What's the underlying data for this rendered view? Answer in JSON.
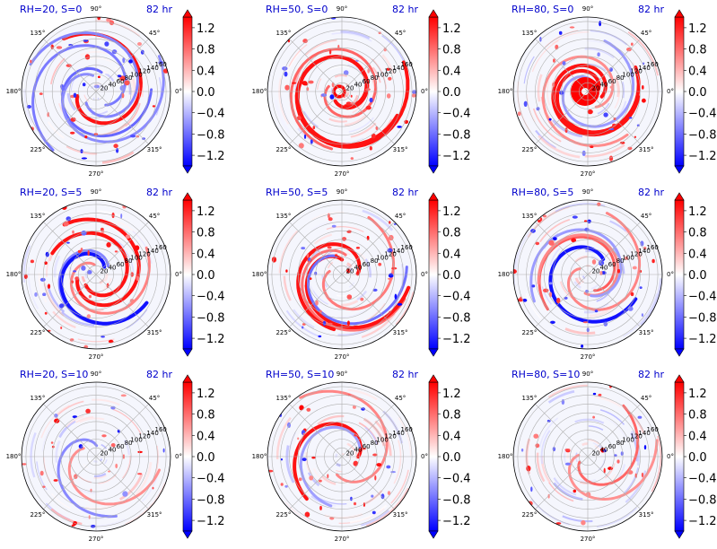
{
  "figure": {
    "time_label": "82 hr",
    "angle_ticks": [
      "0°",
      "45°",
      "90°",
      "135°",
      "180°",
      "225°",
      "270°",
      "315°"
    ],
    "radial_ticks": [
      "20",
      "40",
      "60",
      "80",
      "100",
      "120",
      "140",
      "160"
    ],
    "colorbar_ticks": [
      "1.2",
      "0.8",
      "0.4",
      "0.0",
      "−0.4",
      "−0.8",
      "−1.2"
    ],
    "colorbar_range": [
      -1.4,
      1.4
    ],
    "colormap": "bwr",
    "title_color": "#0000cc"
  },
  "chart_data": [
    {
      "type": "heatmap",
      "projection": "polar",
      "title": "RH=20, S=0",
      "time": "82 hr",
      "rh": 20,
      "s": 0,
      "radial_range": [
        0,
        170
      ],
      "pattern": "spiral bands with strong positive outer band on eastern side"
    },
    {
      "type": "heatmap",
      "projection": "polar",
      "title": "RH=50, S=0",
      "time": "82 hr",
      "rh": 50,
      "s": 0,
      "radial_range": [
        0,
        170
      ],
      "pattern": "compact ring of strong positive values near center"
    },
    {
      "type": "heatmap",
      "projection": "polar",
      "title": "RH=80, S=0",
      "time": "82 hr",
      "rh": 80,
      "s": 0,
      "radial_range": [
        0,
        170
      ],
      "pattern": "intense positive core near center, weak outer rings"
    },
    {
      "type": "heatmap",
      "projection": "polar",
      "title": "RH=20, S=5",
      "time": "82 hr",
      "rh": 20,
      "s": 5,
      "radial_range": [
        0,
        170
      ],
      "pattern": "spiral bands with mixed positive and negative cells"
    },
    {
      "type": "heatmap",
      "projection": "polar",
      "title": "RH=50, S=5",
      "time": "82 hr",
      "rh": 50,
      "s": 5,
      "radial_range": [
        0,
        170
      ],
      "pattern": "broken spiral bands, scattered cells"
    },
    {
      "type": "heatmap",
      "projection": "polar",
      "title": "RH=80, S=5",
      "time": "82 hr",
      "rh": 80,
      "s": 5,
      "radial_range": [
        0,
        170
      ],
      "pattern": "spiral bands with strong positive arcs and negative inner band"
    },
    {
      "type": "heatmap",
      "projection": "polar",
      "title": "RH=20, S=10",
      "time": "82 hr",
      "rh": 20,
      "s": 10,
      "radial_range": [
        0,
        170
      ],
      "pattern": "sparse scattered positive cells"
    },
    {
      "type": "heatmap",
      "projection": "polar",
      "title": "RH=50, S=10",
      "time": "82 hr",
      "rh": 50,
      "s": 10,
      "radial_range": [
        0,
        170
      ],
      "pattern": "clustered convective cells on eastern side"
    },
    {
      "type": "heatmap",
      "projection": "polar",
      "title": "RH=80, S=10",
      "time": "82 hr",
      "rh": 80,
      "s": 10,
      "radial_range": [
        0,
        170
      ],
      "pattern": "sparse cells, strong cluster in northeast"
    }
  ]
}
